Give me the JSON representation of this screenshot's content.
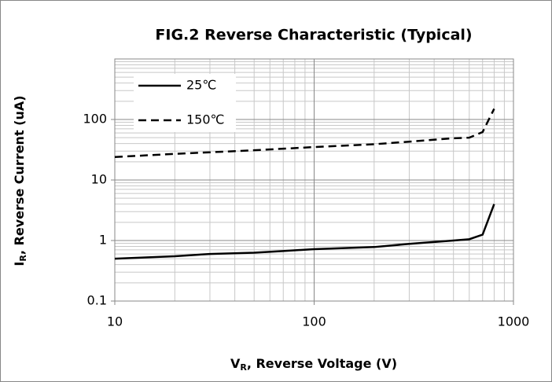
{
  "chart_data": {
    "type": "line",
    "title": "FIG.2 Reverse Characteristic (Typical)",
    "x_label": {
      "symbol": "V",
      "subscript": "R",
      "text": ", Reverse Voltage (V)"
    },
    "y_label": {
      "symbol": "I",
      "subscript": "R",
      "text": ", Reverse Current (uA)"
    },
    "xlog": true,
    "ylog": true,
    "grid": true,
    "minor_grid": true,
    "xlim": [
      10,
      1000
    ],
    "xticks": [
      10,
      100,
      1000
    ],
    "ylim": [
      0.1,
      1000
    ],
    "yticks": [
      0.1,
      1,
      10,
      100
    ],
    "legend": "upper left",
    "series": [
      {
        "name": "25℃",
        "color": "#000000",
        "dash": false,
        "x": [
          10,
          20,
          30,
          50,
          70,
          100,
          200,
          300,
          500,
          600,
          700,
          800
        ],
        "values": [
          0.5,
          0.55,
          0.6,
          0.63,
          0.67,
          0.72,
          0.78,
          0.88,
          1.0,
          1.05,
          1.25,
          4.0
        ]
      },
      {
        "name": "150℃",
        "color": "#000000",
        "dash": true,
        "x": [
          10,
          20,
          50,
          100,
          200,
          300,
          500,
          600,
          700,
          800
        ],
        "values": [
          24,
          27,
          31,
          35,
          39,
          43,
          49,
          50,
          62,
          150
        ]
      }
    ]
  }
}
